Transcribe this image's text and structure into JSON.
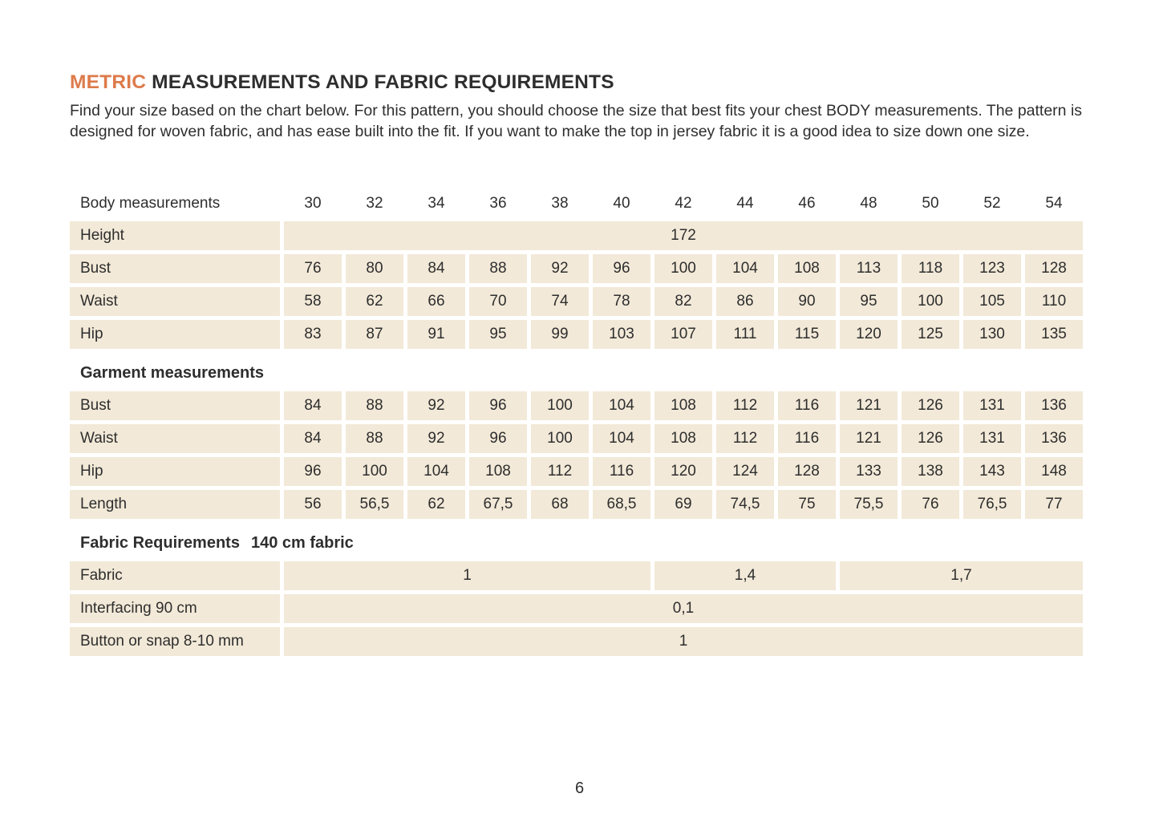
{
  "page": {
    "title_accent": "METRIC",
    "title_rest": " MEASUREMENTS AND FABRIC REQUIREMENTS",
    "intro": "Find your size based on the chart below. For this pattern, you should choose the size that best fits your chest BODY measurements. The pattern is designed for woven fabric, and has ease built into the fit. If you want to make the top in jersey fabric it is a good idea to size down one size.",
    "page_number": "6"
  },
  "colors": {
    "accent_orange": "#DD7B4B",
    "cell_beige": "#F2E9D8",
    "text_dark": "#2E2E2E",
    "background": "#FFFFFF"
  },
  "table": {
    "header_label": "Body measurements",
    "sizes": [
      "30",
      "32",
      "34",
      "36",
      "38",
      "40",
      "42",
      "44",
      "46",
      "48",
      "50",
      "52",
      "54"
    ],
    "sections": [
      {
        "title": "",
        "rows": [
          {
            "label": "Height",
            "cells": [
              {
                "v": "172",
                "span": 13
              }
            ]
          },
          {
            "label": "Bust",
            "values": [
              "76",
              "80",
              "84",
              "88",
              "92",
              "96",
              "100",
              "104",
              "108",
              "113",
              "118",
              "123",
              "128"
            ]
          },
          {
            "label": "Waist",
            "values": [
              "58",
              "62",
              "66",
              "70",
              "74",
              "78",
              "82",
              "86",
              "90",
              "95",
              "100",
              "105",
              "110"
            ]
          },
          {
            "label": "Hip",
            "values": [
              "83",
              "87",
              "91",
              "95",
              "99",
              "103",
              "107",
              "111",
              "115",
              "120",
              "125",
              "130",
              "135"
            ]
          }
        ]
      },
      {
        "title": "Garment measurements",
        "rows": [
          {
            "label": "Bust",
            "values": [
              "84",
              "88",
              "92",
              "96",
              "100",
              "104",
              "108",
              "112",
              "116",
              "121",
              "126",
              "131",
              "136"
            ]
          },
          {
            "label": "Waist",
            "values": [
              "84",
              "88",
              "92",
              "96",
              "100",
              "104",
              "108",
              "112",
              "116",
              "121",
              "126",
              "131",
              "136"
            ]
          },
          {
            "label": "Hip",
            "values": [
              "96",
              "100",
              "104",
              "108",
              "112",
              "116",
              "120",
              "124",
              "128",
              "133",
              "138",
              "143",
              "148"
            ]
          },
          {
            "label": "Length",
            "values": [
              "56",
              "56,5",
              "62",
              "67,5",
              "68",
              "68,5",
              "69",
              "74,5",
              "75",
              "75,5",
              "76",
              "76,5",
              "77"
            ]
          }
        ]
      },
      {
        "title": "Fabric Requirements",
        "suffix": "140 cm fabric",
        "rows": [
          {
            "label": "Fabric",
            "cells": [
              {
                "v": "1",
                "span": 6
              },
              {
                "v": "1,4",
                "span": 3
              },
              {
                "v": "1,7",
                "span": 4
              }
            ]
          },
          {
            "label": "Interfacing 90 cm",
            "cells": [
              {
                "v": "0,1",
                "span": 13
              }
            ]
          },
          {
            "label": "Button or snap 8-10 mm",
            "cells": [
              {
                "v": "1",
                "span": 13
              }
            ]
          }
        ]
      }
    ]
  }
}
